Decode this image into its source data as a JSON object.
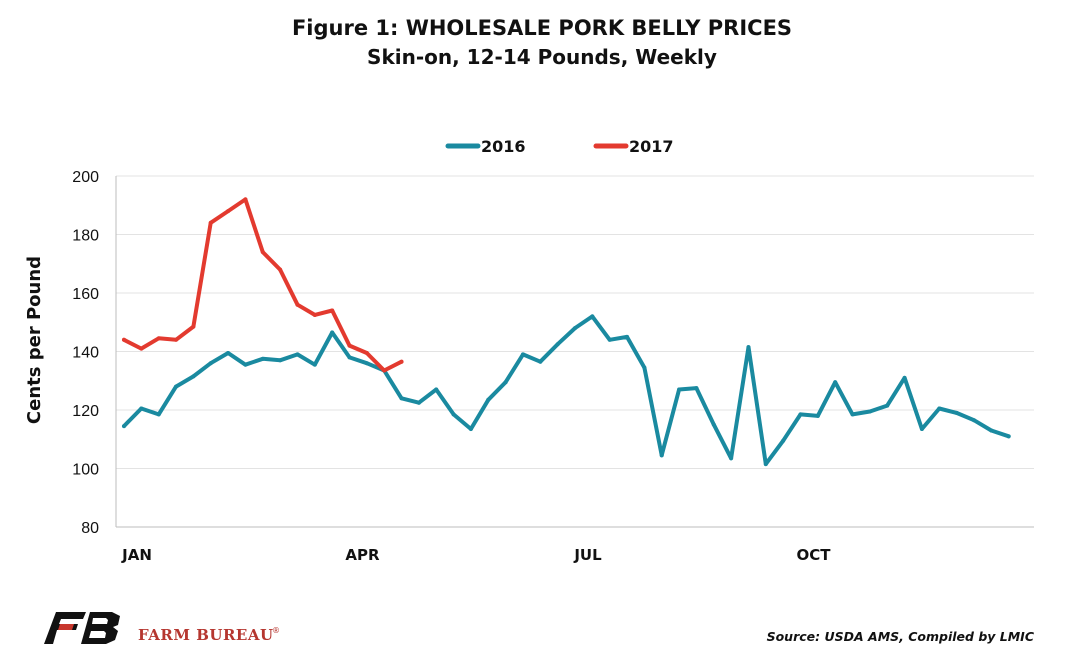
{
  "chart_data": {
    "type": "line",
    "title": "Figure 1: WHOLESALE PORK BELLY PRICES",
    "subtitle": "Skin-on, 12-14 Pounds, Weekly",
    "ylabel": "Cents per Pound",
    "xlabel": "",
    "ylim": [
      80,
      200
    ],
    "yticks": [
      "80",
      "100",
      "120",
      "140",
      "160",
      "180",
      "200"
    ],
    "xticks": [
      {
        "label": "JAN",
        "week": 0
      },
      {
        "label": "APR",
        "week": 13
      },
      {
        "label": "JUL",
        "week": 26
      },
      {
        "label": "OCT",
        "week": 39
      }
    ],
    "x_range_weeks": [
      0,
      52
    ],
    "grid": true,
    "legend_position": "top-center",
    "series": [
      {
        "name": "2016",
        "color": "#1a8aa0",
        "values": [
          114.5,
          120.5,
          118.5,
          128.0,
          131.5,
          136.0,
          139.5,
          135.5,
          137.5,
          137.0,
          139.0,
          135.5,
          146.5,
          138.0,
          136.0,
          133.5,
          124.0,
          122.5,
          127.0,
          118.5,
          113.5,
          123.5,
          129.5,
          139.0,
          136.5,
          142.5,
          148.0,
          152.0,
          144.0,
          145.0,
          134.5,
          104.5,
          127.0,
          127.5,
          115.0,
          103.5,
          141.5,
          101.5,
          109.5,
          118.5,
          118.0,
          129.5,
          118.5,
          119.5,
          121.5,
          131.0,
          113.5,
          120.5,
          119.0,
          116.5,
          113.0,
          111.0
        ]
      },
      {
        "name": "2017",
        "color": "#e33a2f",
        "values": [
          144.0,
          141.0,
          144.5,
          144.0,
          148.5,
          184.0,
          188.0,
          192.0,
          174.0,
          168.0,
          156.0,
          152.5,
          154.0,
          142.0,
          139.5,
          133.5,
          136.5
        ]
      }
    ]
  },
  "footer": {
    "brand": "FARM BUREAU",
    "brand_mark": "®",
    "source": "Source: USDA AMS, Compiled by LMIC"
  }
}
